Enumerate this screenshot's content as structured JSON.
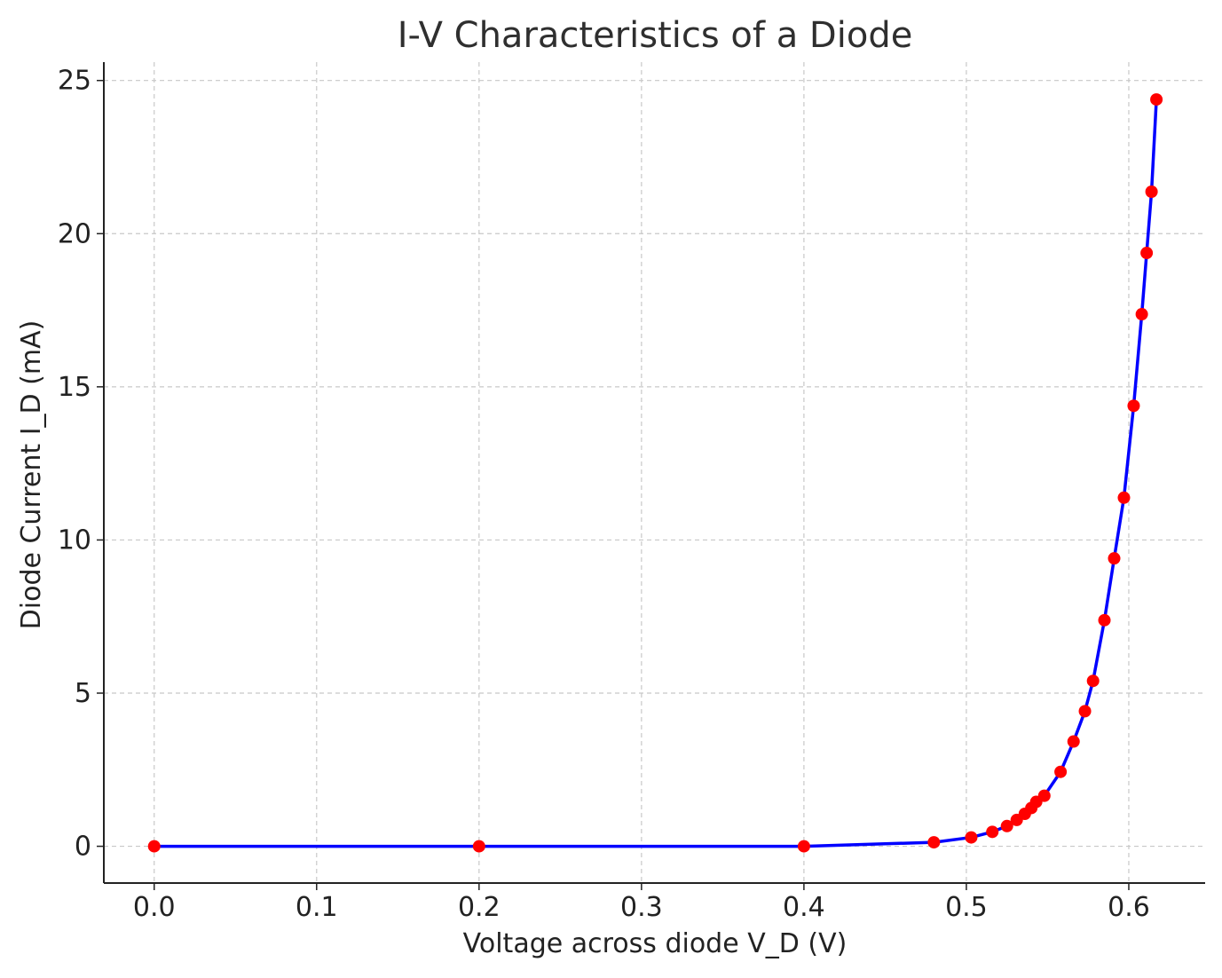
{
  "chart_data": {
    "type": "line",
    "title": "I-V Characteristics of a Diode",
    "xlabel": "Voltage across diode V_D (V)",
    "ylabel": "Diode Current I_D (mA)",
    "xlim": [
      -0.031,
      0.647
    ],
    "ylim": [
      -1.2,
      25.6
    ],
    "xticks": [
      0.0,
      0.1,
      0.2,
      0.3,
      0.4,
      0.5,
      0.6
    ],
    "xtick_labels": [
      "0.0",
      "0.1",
      "0.2",
      "0.3",
      "0.4",
      "0.5",
      "0.6"
    ],
    "yticks": [
      0,
      5,
      10,
      15,
      20,
      25
    ],
    "ytick_labels": [
      "0",
      "5",
      "10",
      "15",
      "20",
      "25"
    ],
    "grid": true,
    "legend": "none",
    "line_color": "#0000ff",
    "marker_color": "#ff0000",
    "series": [
      {
        "x": [
          0.0,
          0.2,
          0.4,
          0.48,
          0.503,
          0.516,
          0.525,
          0.531,
          0.536,
          0.54,
          0.543,
          0.548,
          0.558,
          0.566,
          0.573,
          0.578,
          0.585,
          0.591,
          0.597,
          0.603,
          0.608,
          0.611,
          0.614,
          0.617
        ],
        "y": [
          0.0,
          0.0,
          0.0,
          0.13,
          0.29,
          0.47,
          0.66,
          0.86,
          1.06,
          1.25,
          1.45,
          1.65,
          2.43,
          3.42,
          4.41,
          5.4,
          7.38,
          9.4,
          11.38,
          14.38,
          17.37,
          19.37,
          21.37,
          24.38
        ]
      }
    ]
  }
}
